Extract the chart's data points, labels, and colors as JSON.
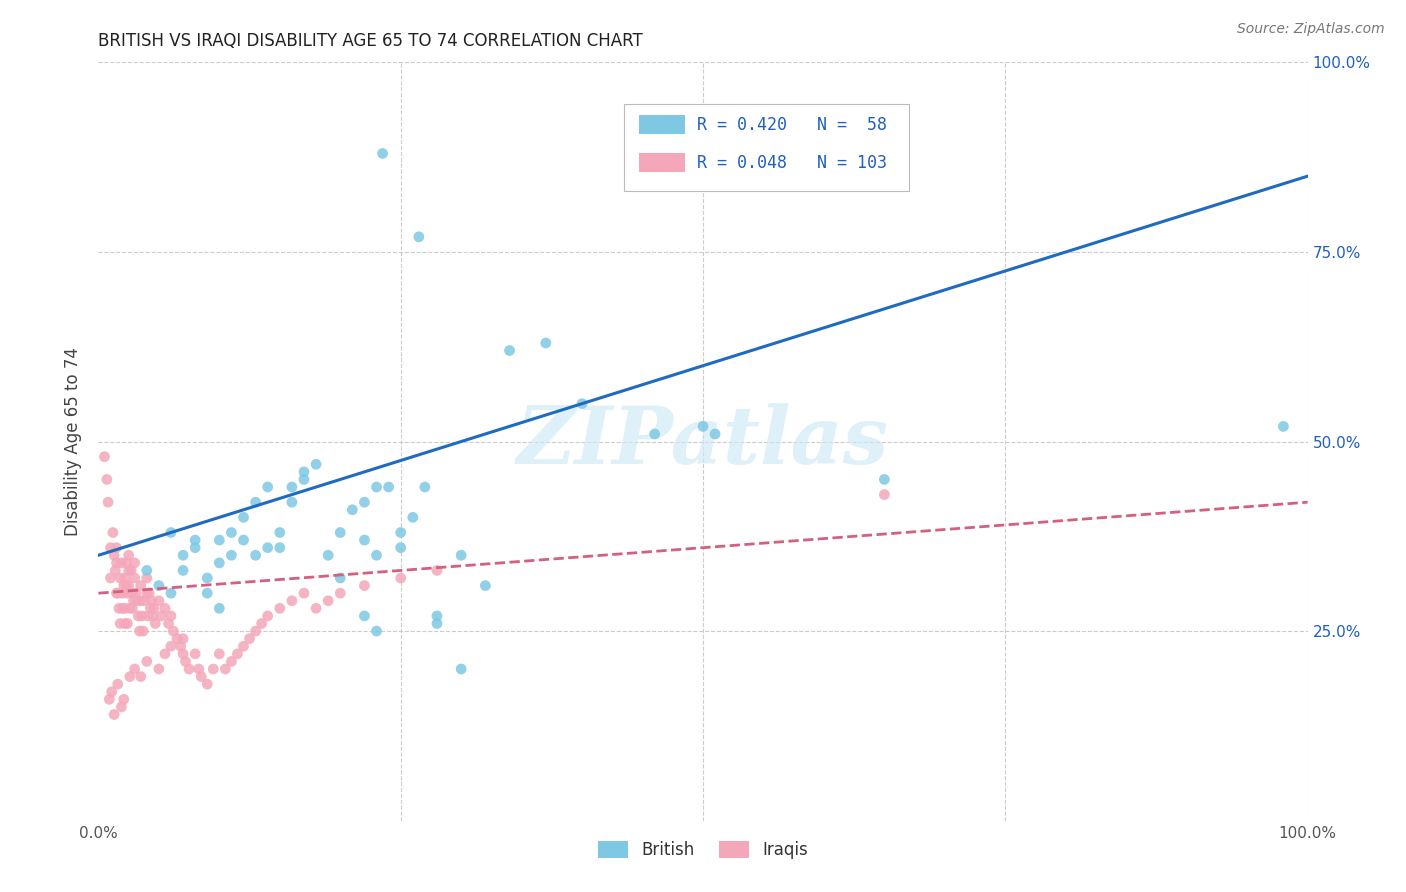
{
  "title": "BRITISH VS IRAQI DISABILITY AGE 65 TO 74 CORRELATION CHART",
  "source": "Source: ZipAtlas.com",
  "ylabel": "Disability Age 65 to 74",
  "xlim": [
    0,
    1
  ],
  "ylim": [
    0,
    1
  ],
  "watermark_text": "ZIPatlas",
  "british_R": 0.42,
  "british_N": 58,
  "iraqi_R": 0.048,
  "iraqi_N": 103,
  "british_color": "#7ec8e3",
  "iraqi_color": "#f4a7b9",
  "british_line_color": "#1f6bbf",
  "iraqi_line_color": "#d46080",
  "label_color": "#2060c0",
  "axis_label_color": "#555555",
  "grid_color": "#cccccc",
  "british_line_intercept": 0.35,
  "british_line_slope": 0.5,
  "iraqi_line_intercept": 0.3,
  "iraqi_line_slope": 0.12,
  "british_x": [
    0.04,
    0.05,
    0.06,
    0.06,
    0.07,
    0.07,
    0.08,
    0.08,
    0.09,
    0.09,
    0.1,
    0.1,
    0.1,
    0.11,
    0.11,
    0.12,
    0.12,
    0.13,
    0.13,
    0.14,
    0.14,
    0.15,
    0.15,
    0.16,
    0.16,
    0.17,
    0.17,
    0.18,
    0.19,
    0.2,
    0.2,
    0.21,
    0.22,
    0.22,
    0.23,
    0.23,
    0.24,
    0.25,
    0.25,
    0.26,
    0.27,
    0.28,
    0.3,
    0.32,
    0.34,
    0.37,
    0.4,
    0.46,
    0.5,
    0.51,
    0.22,
    0.23,
    0.28,
    0.3,
    0.65,
    0.98,
    0.265,
    0.235
  ],
  "british_y": [
    0.33,
    0.31,
    0.3,
    0.38,
    0.35,
    0.33,
    0.37,
    0.36,
    0.32,
    0.3,
    0.28,
    0.34,
    0.37,
    0.35,
    0.38,
    0.37,
    0.4,
    0.35,
    0.42,
    0.36,
    0.44,
    0.36,
    0.38,
    0.42,
    0.44,
    0.45,
    0.46,
    0.47,
    0.35,
    0.32,
    0.38,
    0.41,
    0.37,
    0.42,
    0.35,
    0.44,
    0.44,
    0.36,
    0.38,
    0.4,
    0.44,
    0.26,
    0.35,
    0.31,
    0.62,
    0.63,
    0.55,
    0.51,
    0.52,
    0.51,
    0.27,
    0.25,
    0.27,
    0.2,
    0.45,
    0.52,
    0.77,
    0.88
  ],
  "iraqi_x": [
    0.005,
    0.007,
    0.008,
    0.01,
    0.01,
    0.012,
    0.013,
    0.014,
    0.015,
    0.015,
    0.015,
    0.016,
    0.017,
    0.018,
    0.018,
    0.019,
    0.02,
    0.02,
    0.021,
    0.022,
    0.022,
    0.022,
    0.023,
    0.023,
    0.024,
    0.024,
    0.025,
    0.025,
    0.025,
    0.026,
    0.027,
    0.028,
    0.028,
    0.029,
    0.03,
    0.03,
    0.031,
    0.032,
    0.033,
    0.034,
    0.035,
    0.035,
    0.036,
    0.037,
    0.038,
    0.04,
    0.04,
    0.041,
    0.042,
    0.043,
    0.044,
    0.045,
    0.046,
    0.047,
    0.05,
    0.052,
    0.055,
    0.058,
    0.06,
    0.062,
    0.065,
    0.068,
    0.07,
    0.072,
    0.075,
    0.08,
    0.083,
    0.085,
    0.09,
    0.095,
    0.1,
    0.105,
    0.11,
    0.115,
    0.12,
    0.125,
    0.13,
    0.135,
    0.14,
    0.15,
    0.16,
    0.17,
    0.18,
    0.19,
    0.2,
    0.22,
    0.25,
    0.28,
    0.009,
    0.011,
    0.013,
    0.016,
    0.019,
    0.021,
    0.026,
    0.03,
    0.035,
    0.04,
    0.05,
    0.055,
    0.06,
    0.07,
    0.65
  ],
  "iraqi_y": [
    0.48,
    0.45,
    0.42,
    0.32,
    0.36,
    0.38,
    0.35,
    0.33,
    0.3,
    0.34,
    0.36,
    0.3,
    0.28,
    0.26,
    0.32,
    0.34,
    0.3,
    0.28,
    0.31,
    0.26,
    0.32,
    0.28,
    0.34,
    0.31,
    0.26,
    0.3,
    0.35,
    0.33,
    0.31,
    0.28,
    0.33,
    0.3,
    0.28,
    0.29,
    0.34,
    0.32,
    0.3,
    0.29,
    0.27,
    0.25,
    0.31,
    0.29,
    0.27,
    0.25,
    0.29,
    0.32,
    0.3,
    0.27,
    0.3,
    0.28,
    0.29,
    0.27,
    0.28,
    0.26,
    0.29,
    0.27,
    0.28,
    0.26,
    0.27,
    0.25,
    0.24,
    0.23,
    0.22,
    0.21,
    0.2,
    0.22,
    0.2,
    0.19,
    0.18,
    0.2,
    0.22,
    0.2,
    0.21,
    0.22,
    0.23,
    0.24,
    0.25,
    0.26,
    0.27,
    0.28,
    0.29,
    0.3,
    0.28,
    0.29,
    0.3,
    0.31,
    0.32,
    0.33,
    0.16,
    0.17,
    0.14,
    0.18,
    0.15,
    0.16,
    0.19,
    0.2,
    0.19,
    0.21,
    0.2,
    0.22,
    0.23,
    0.24,
    0.43
  ]
}
